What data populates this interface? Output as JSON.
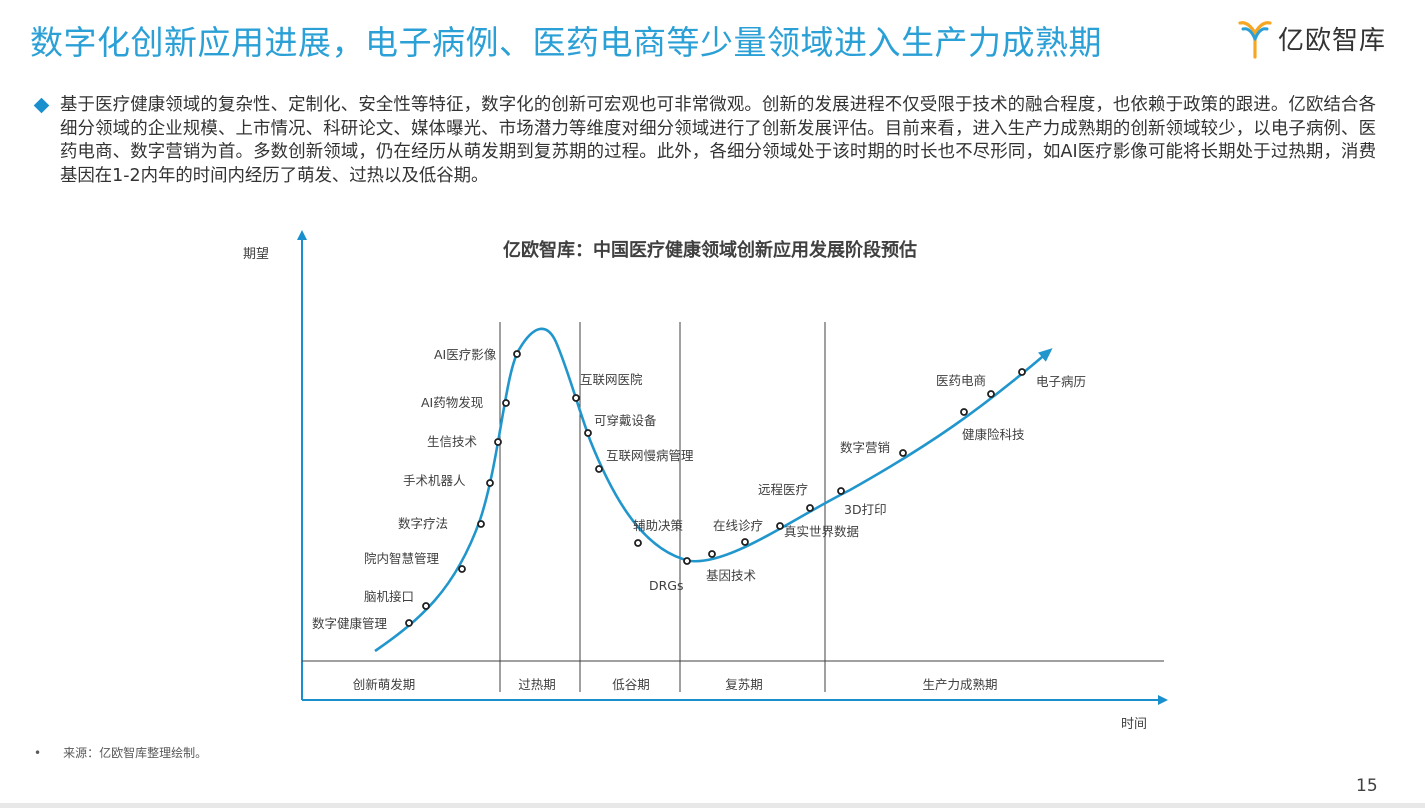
{
  "header": {
    "title": "数字化创新应用进展，电子病例、医药电商等少量领域进入生产力成熟期",
    "logo_text": "亿欧智库",
    "logo_name": "yiou-logo-icon"
  },
  "intro": {
    "text": "基于医疗健康领域的复杂性、定制化、安全性等特征，数字化的创新可宏观也可非常微观。创新的发展进程不仅受限于技术的融合程度，也依赖于政策的跟进。亿欧结合各细分领域的企业规模、上市情况、科研论文、媒体曝光、市场潜力等维度对细分领域进行了创新发展评估。目前来看，进入生产力成熟期的创新领域较少，以电子病例、医药电商、数字营销为首。多数创新领域，仍在经历从萌发期到复苏期的过程。此外，各细分领域处于该时期的时长也不尽形同，如AI医疗影像可能将长期处于过热期，消费基因在1-2内年的时间内经历了萌发、过热以及低谷期。"
  },
  "chart_data": {
    "type": "line",
    "title": "亿欧智库：中国医疗健康领域创新应用发展阶段预估",
    "xlabel": "时间",
    "ylabel": "期望",
    "colors": {
      "curve": "#2196cc",
      "axis": "#1a8fce",
      "text": "#404040",
      "divider": "#404040"
    },
    "phases": [
      "创新萌发期",
      "过热期",
      "低谷期",
      "复苏期",
      "生产力成熟期"
    ],
    "points": [
      {
        "label": "数字健康管理",
        "phase": "创新萌发期"
      },
      {
        "label": "脑机接口",
        "phase": "创新萌发期"
      },
      {
        "label": "院内智慧管理",
        "phase": "创新萌发期"
      },
      {
        "label": "数字疗法",
        "phase": "创新萌发期"
      },
      {
        "label": "手术机器人",
        "phase": "创新萌发期"
      },
      {
        "label": "生信技术",
        "phase": "创新萌发期"
      },
      {
        "label": "AI药物发现",
        "phase": "过热期"
      },
      {
        "label": "AI医疗影像",
        "phase": "过热期"
      },
      {
        "label": "互联网医院",
        "phase": "过热期"
      },
      {
        "label": "可穿戴设备",
        "phase": "过热期"
      },
      {
        "label": "互联网慢病管理",
        "phase": "过热期"
      },
      {
        "label": "辅助决策",
        "phase": "低谷期"
      },
      {
        "label": "DRGs",
        "phase": "低谷期"
      },
      {
        "label": "基因技术",
        "phase": "低谷期"
      },
      {
        "label": "在线诊疗",
        "phase": "复苏期"
      },
      {
        "label": "真实世界数据",
        "phase": "复苏期"
      },
      {
        "label": "远程医疗",
        "phase": "复苏期"
      },
      {
        "label": "3D打印",
        "phase": "生产力成熟期"
      },
      {
        "label": "数字营销",
        "phase": "生产力成熟期"
      },
      {
        "label": "健康险科技",
        "phase": "生产力成熟期"
      },
      {
        "label": "医药电商",
        "phase": "生产力成熟期"
      },
      {
        "label": "电子病历",
        "phase": "生产力成熟期"
      }
    ]
  },
  "footer": {
    "source_bullet": "•",
    "source": "来源：亿欧智库整理绘制。",
    "page_number": "15"
  }
}
